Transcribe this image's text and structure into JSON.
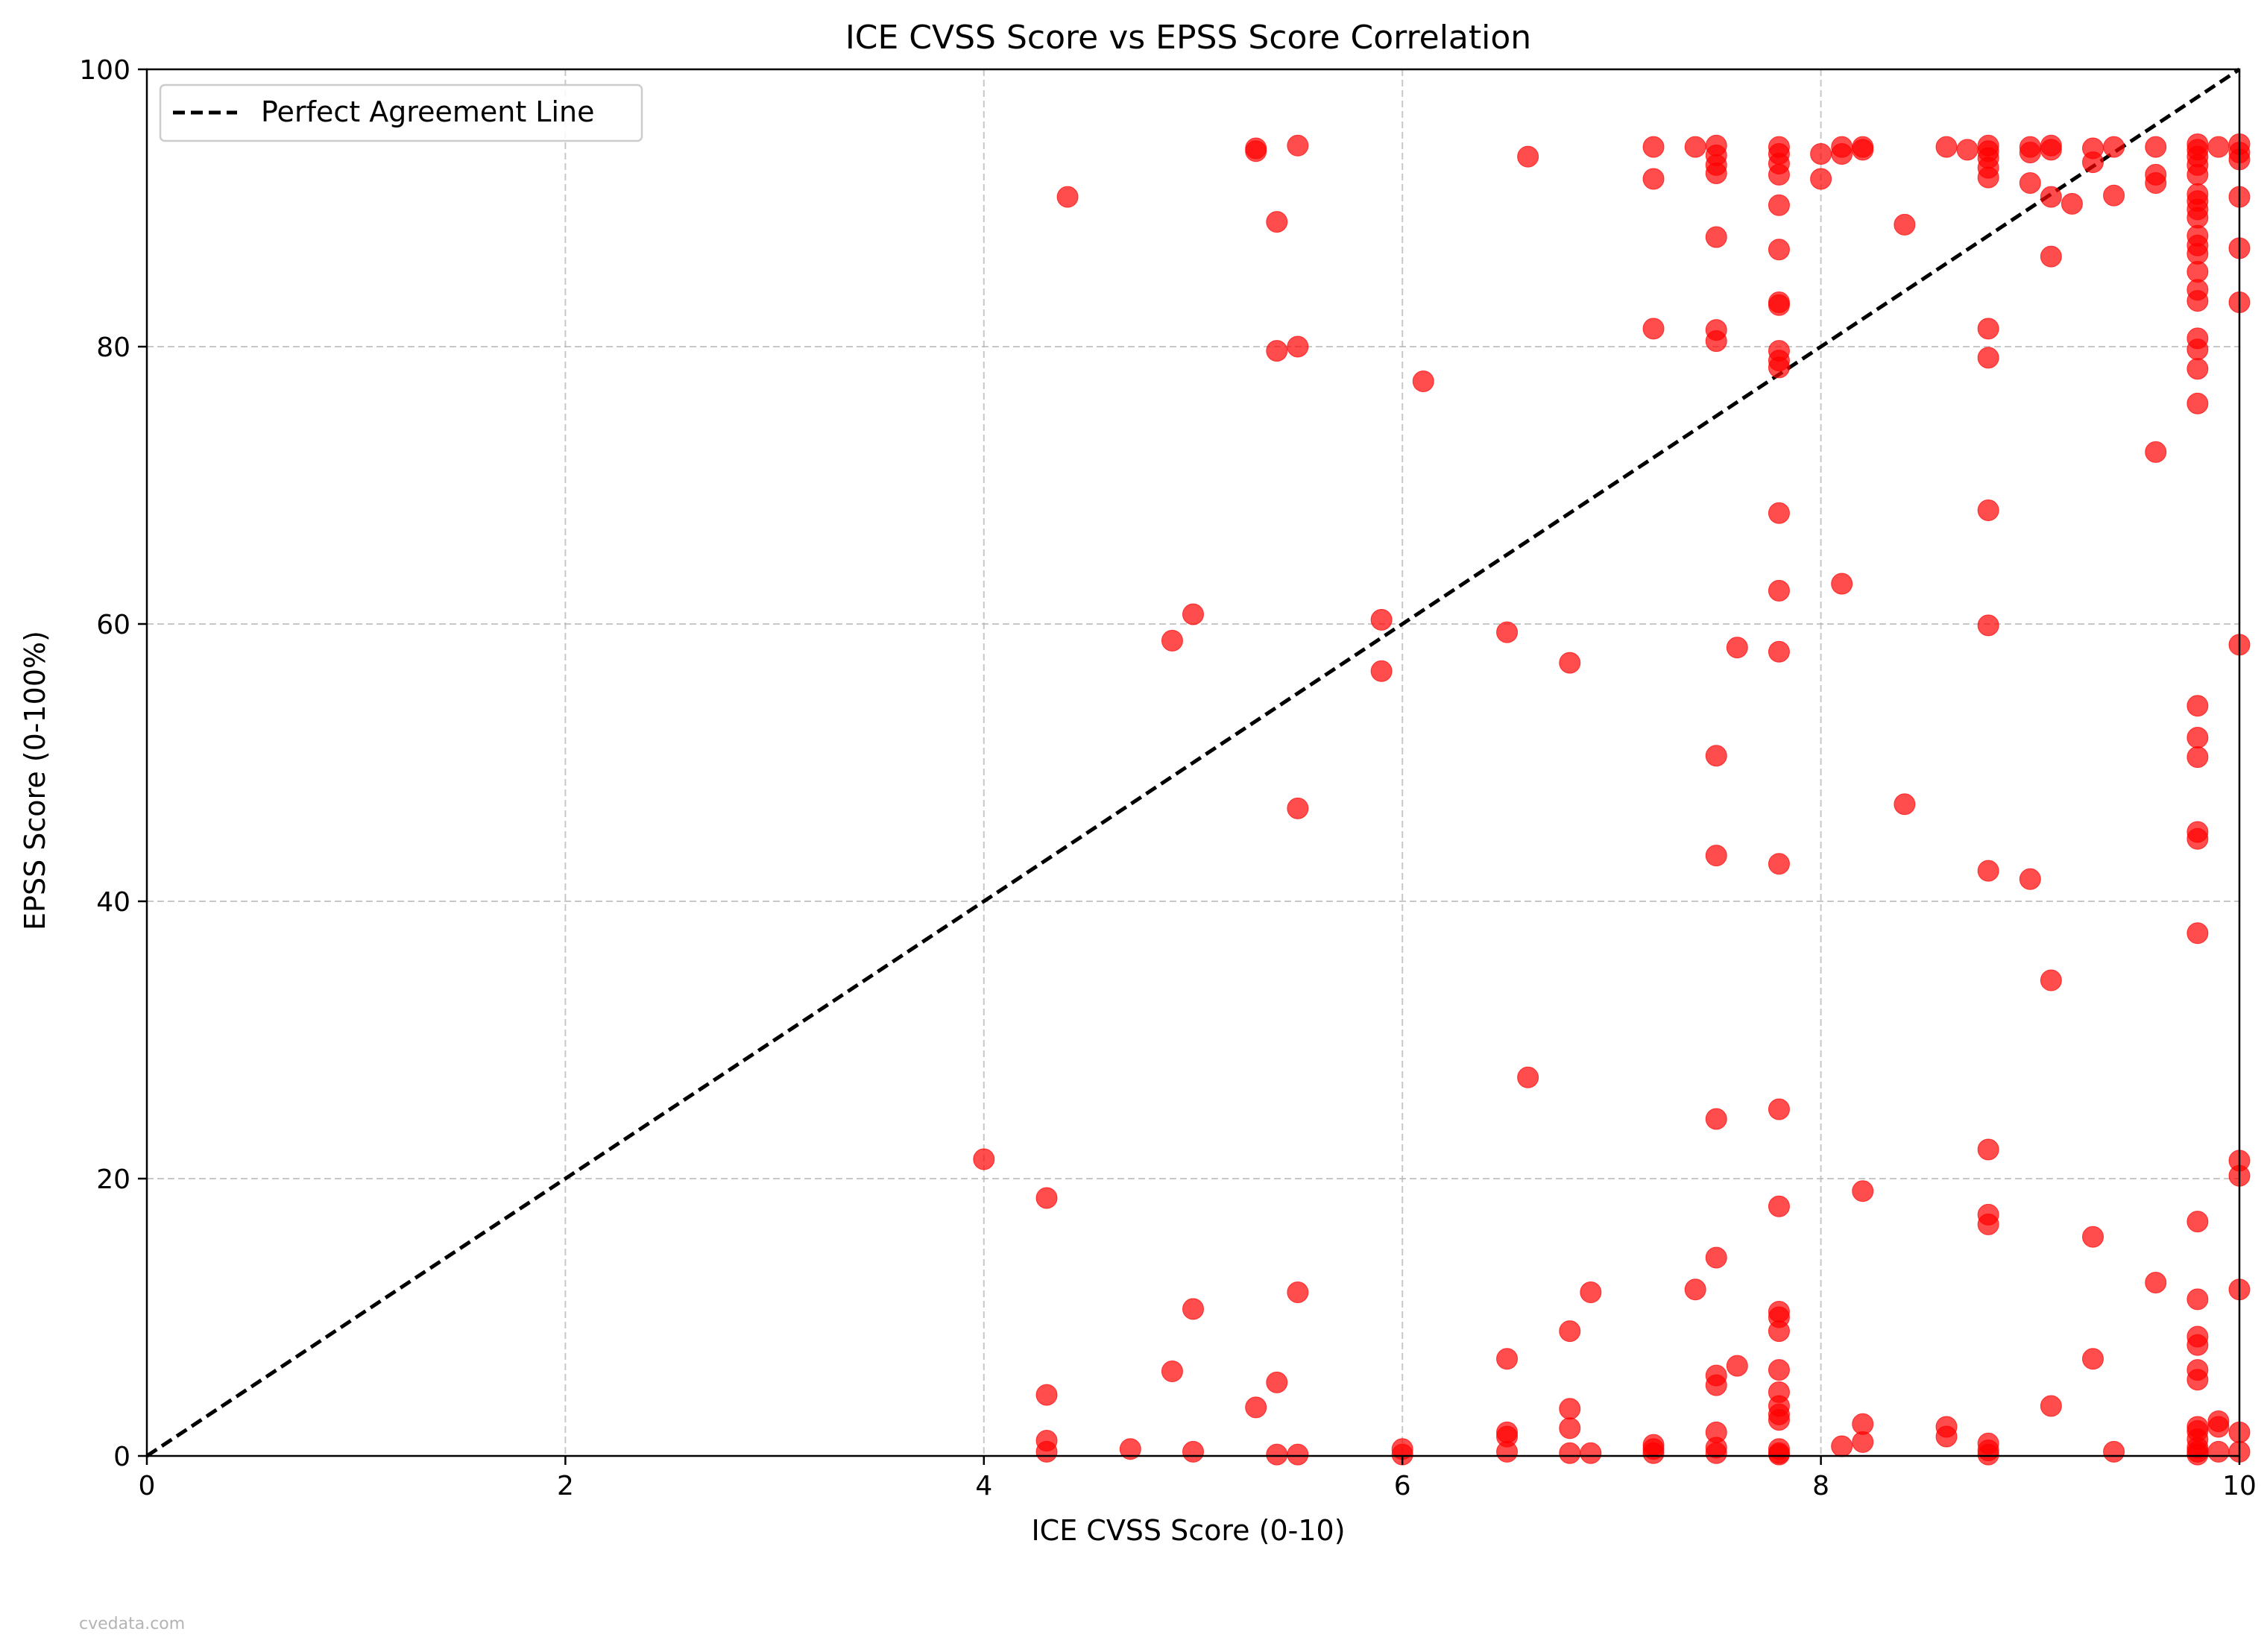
{
  "chart_data": {
    "type": "scatter",
    "title": "ICE CVSS Score vs EPSS Score Correlation",
    "xlabel": "ICE CVSS Score (0-10)",
    "ylabel": "EPSS Score (0-100%)",
    "xlim": [
      0,
      10
    ],
    "ylim": [
      0,
      100
    ],
    "xticks": [
      0,
      2,
      4,
      6,
      8,
      10
    ],
    "yticks": [
      0,
      20,
      40,
      60,
      80,
      100
    ],
    "grid": true,
    "legend_position": "top-left",
    "colors": {
      "points": "#ff0000",
      "line": "#000000",
      "grid": "#b0b0b0"
    },
    "reference_line": {
      "name": "Perfect Agreement Line",
      "points": [
        [
          0,
          0
        ],
        [
          10,
          100
        ]
      ],
      "style": "dashed"
    },
    "series": [
      {
        "points": [
          [
            4.0,
            21.4
          ],
          [
            4.3,
            18.6
          ],
          [
            4.3,
            4.4
          ],
          [
            4.3,
            1.1
          ],
          [
            4.3,
            0.3
          ],
          [
            4.4,
            90.8
          ],
          [
            4.7,
            0.5
          ],
          [
            4.9,
            58.8
          ],
          [
            4.9,
            6.1
          ],
          [
            5.0,
            60.7
          ],
          [
            5.0,
            10.6
          ],
          [
            5.0,
            0.3
          ],
          [
            5.3,
            94.3
          ],
          [
            5.3,
            94.1
          ],
          [
            5.3,
            3.5
          ],
          [
            5.4,
            89.0
          ],
          [
            5.4,
            79.7
          ],
          [
            5.4,
            5.3
          ],
          [
            5.4,
            0.1
          ],
          [
            5.5,
            94.5
          ],
          [
            5.5,
            80.0
          ],
          [
            5.5,
            46.7
          ],
          [
            5.5,
            11.8
          ],
          [
            5.5,
            0.1
          ],
          [
            5.9,
            60.3
          ],
          [
            5.9,
            56.6
          ],
          [
            6.0,
            0.5
          ],
          [
            6.0,
            0.1
          ],
          [
            6.1,
            77.5
          ],
          [
            6.5,
            59.4
          ],
          [
            6.5,
            7.0
          ],
          [
            6.5,
            1.7
          ],
          [
            6.5,
            1.4
          ],
          [
            6.5,
            0.3
          ],
          [
            6.6,
            93.7
          ],
          [
            6.6,
            27.3
          ],
          [
            6.8,
            57.2
          ],
          [
            6.8,
            9.0
          ],
          [
            6.8,
            3.4
          ],
          [
            6.8,
            2.0
          ],
          [
            6.8,
            0.2
          ],
          [
            6.9,
            11.8
          ],
          [
            6.9,
            0.2
          ],
          [
            7.2,
            94.4
          ],
          [
            7.2,
            92.1
          ],
          [
            7.2,
            81.3
          ],
          [
            7.2,
            0.8
          ],
          [
            7.2,
            0.5
          ],
          [
            7.2,
            0.2
          ],
          [
            7.4,
            94.4
          ],
          [
            7.4,
            12.0
          ],
          [
            7.5,
            94.5
          ],
          [
            7.5,
            93.8
          ],
          [
            7.5,
            93.1
          ],
          [
            7.5,
            92.5
          ],
          [
            7.5,
            87.9
          ],
          [
            7.5,
            81.2
          ],
          [
            7.5,
            80.4
          ],
          [
            7.5,
            50.5
          ],
          [
            7.5,
            43.3
          ],
          [
            7.5,
            24.3
          ],
          [
            7.5,
            14.3
          ],
          [
            7.5,
            5.8
          ],
          [
            7.5,
            5.1
          ],
          [
            7.5,
            1.7
          ],
          [
            7.5,
            0.6
          ],
          [
            7.5,
            0.2
          ],
          [
            7.6,
            58.3
          ],
          [
            7.6,
            6.5
          ],
          [
            7.8,
            94.4
          ],
          [
            7.8,
            93.9
          ],
          [
            7.8,
            93.2
          ],
          [
            7.8,
            92.4
          ],
          [
            7.8,
            90.2
          ],
          [
            7.8,
            87.0
          ],
          [
            7.8,
            83.2
          ],
          [
            7.8,
            83.0
          ],
          [
            7.8,
            79.7
          ],
          [
            7.8,
            79.0
          ],
          [
            7.8,
            78.5
          ],
          [
            7.8,
            68.0
          ],
          [
            7.8,
            62.4
          ],
          [
            7.8,
            58.0
          ],
          [
            7.8,
            42.7
          ],
          [
            7.8,
            25.0
          ],
          [
            7.8,
            18.0
          ],
          [
            7.8,
            10.4
          ],
          [
            7.8,
            10.0
          ],
          [
            7.8,
            9.0
          ],
          [
            7.8,
            6.2
          ],
          [
            7.8,
            4.6
          ],
          [
            7.8,
            3.6
          ],
          [
            7.8,
            3.0
          ],
          [
            7.8,
            2.6
          ],
          [
            7.8,
            0.5
          ],
          [
            7.8,
            0.2
          ],
          [
            7.8,
            0.1
          ],
          [
            8.0,
            93.9
          ],
          [
            8.0,
            92.1
          ],
          [
            8.1,
            94.4
          ],
          [
            8.1,
            93.9
          ],
          [
            8.1,
            62.9
          ],
          [
            8.1,
            0.7
          ],
          [
            8.2,
            94.4
          ],
          [
            8.2,
            94.2
          ],
          [
            8.2,
            19.1
          ],
          [
            8.2,
            2.3
          ],
          [
            8.2,
            1.0
          ],
          [
            8.4,
            88.8
          ],
          [
            8.4,
            47.0
          ],
          [
            8.6,
            94.4
          ],
          [
            8.6,
            2.1
          ],
          [
            8.6,
            1.4
          ],
          [
            8.7,
            94.2
          ],
          [
            8.8,
            94.5
          ],
          [
            8.8,
            94.1
          ],
          [
            8.8,
            93.6
          ],
          [
            8.8,
            92.9
          ],
          [
            8.8,
            92.2
          ],
          [
            8.8,
            81.3
          ],
          [
            8.8,
            79.2
          ],
          [
            8.8,
            68.2
          ],
          [
            8.8,
            59.9
          ],
          [
            8.8,
            42.2
          ],
          [
            8.8,
            22.1
          ],
          [
            8.8,
            17.4
          ],
          [
            8.8,
            16.7
          ],
          [
            8.8,
            0.9
          ],
          [
            8.8,
            0.4
          ],
          [
            8.8,
            0.1
          ],
          [
            9.0,
            94.4
          ],
          [
            9.0,
            94.0
          ],
          [
            9.0,
            91.8
          ],
          [
            9.0,
            41.6
          ],
          [
            9.1,
            94.5
          ],
          [
            9.1,
            94.2
          ],
          [
            9.1,
            90.8
          ],
          [
            9.1,
            86.5
          ],
          [
            9.1,
            34.3
          ],
          [
            9.1,
            3.6
          ],
          [
            9.2,
            90.3
          ],
          [
            9.3,
            94.3
          ],
          [
            9.3,
            93.3
          ],
          [
            9.3,
            15.8
          ],
          [
            9.3,
            7.0
          ],
          [
            9.4,
            94.4
          ],
          [
            9.4,
            90.9
          ],
          [
            9.4,
            0.3
          ],
          [
            9.6,
            94.4
          ],
          [
            9.6,
            92.4
          ],
          [
            9.6,
            91.8
          ],
          [
            9.6,
            72.4
          ],
          [
            9.6,
            12.5
          ],
          [
            9.8,
            94.6
          ],
          [
            9.8,
            94.2
          ],
          [
            9.8,
            93.7
          ],
          [
            9.8,
            93.1
          ],
          [
            9.8,
            92.4
          ],
          [
            9.8,
            91.0
          ],
          [
            9.8,
            90.5
          ],
          [
            9.8,
            89.9
          ],
          [
            9.8,
            89.3
          ],
          [
            9.8,
            88.0
          ],
          [
            9.8,
            87.3
          ],
          [
            9.8,
            86.7
          ],
          [
            9.8,
            85.4
          ],
          [
            9.8,
            84.1
          ],
          [
            9.8,
            83.3
          ],
          [
            9.8,
            80.6
          ],
          [
            9.8,
            79.8
          ],
          [
            9.8,
            78.4
          ],
          [
            9.8,
            75.9
          ],
          [
            9.8,
            54.1
          ],
          [
            9.8,
            51.8
          ],
          [
            9.8,
            50.4
          ],
          [
            9.8,
            45.0
          ],
          [
            9.8,
            44.5
          ],
          [
            9.8,
            37.7
          ],
          [
            9.8,
            16.9
          ],
          [
            9.8,
            11.3
          ],
          [
            9.8,
            8.6
          ],
          [
            9.8,
            8.0
          ],
          [
            9.8,
            6.2
          ],
          [
            9.8,
            5.5
          ],
          [
            9.8,
            2.1
          ],
          [
            9.8,
            1.8
          ],
          [
            9.8,
            1.2
          ],
          [
            9.8,
            0.6
          ],
          [
            9.8,
            0.3
          ],
          [
            9.8,
            0.1
          ],
          [
            9.9,
            94.4
          ],
          [
            9.9,
            2.5
          ],
          [
            9.9,
            2.1
          ],
          [
            9.9,
            0.3
          ],
          [
            10.0,
            94.6
          ],
          [
            10.0,
            94.0
          ],
          [
            10.0,
            93.5
          ],
          [
            10.0,
            90.8
          ],
          [
            10.0,
            87.1
          ],
          [
            10.0,
            83.2
          ],
          [
            10.0,
            58.5
          ],
          [
            10.0,
            21.3
          ],
          [
            10.0,
            20.2
          ],
          [
            10.0,
            12.0
          ],
          [
            10.0,
            1.7
          ],
          [
            10.0,
            0.3
          ]
        ]
      }
    ]
  },
  "watermark": "cvedata.com"
}
